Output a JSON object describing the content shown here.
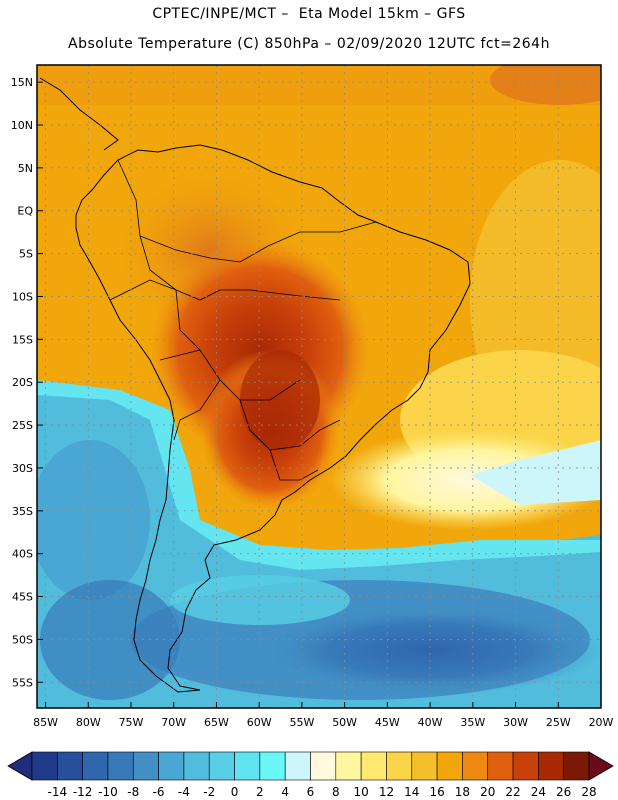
{
  "header": {
    "line1": "CPTEC/INPE/MCT –  Eta Model 15km – GFS",
    "line2": "Absolute Temperature (C) 850hPa – 02/09/2020 12UTC fct=264h"
  },
  "map": {
    "lat_labels": [
      "15N",
      "10N",
      "5N",
      "EQ",
      "5S",
      "10S",
      "15S",
      "20S",
      "25S",
      "30S",
      "35S",
      "40S",
      "45S",
      "50S",
      "55S"
    ],
    "lat_values": [
      15,
      10,
      5,
      0,
      -5,
      -10,
      -15,
      -20,
      -25,
      -30,
      -35,
      -40,
      -45,
      -50,
      -55
    ],
    "lon_labels": [
      "85W",
      "80W",
      "75W",
      "70W",
      "65W",
      "60W",
      "55W",
      "50W",
      "45W",
      "40W",
      "35W",
      "30W",
      "25W",
      "20W"
    ],
    "lon_values": [
      -85,
      -80,
      -75,
      -70,
      -65,
      -60,
      -55,
      -50,
      -45,
      -40,
      -35,
      -30,
      -25,
      -20
    ],
    "extent": {
      "lon_min": -86,
      "lon_max": -20,
      "lat_min": -58,
      "lat_max": 17
    }
  },
  "colorbar": {
    "labels": [
      "-14",
      "-12",
      "-10",
      "-8",
      "-6",
      "-4",
      "-2",
      "0",
      "2",
      "4",
      "6",
      "8",
      "10",
      "12",
      "14",
      "16",
      "18",
      "20",
      "22",
      "24",
      "26",
      "28"
    ],
    "colors": [
      "#1f3a8a",
      "#27509c",
      "#2f66ad",
      "#387ab9",
      "#4290c6",
      "#4aa6d2",
      "#52bcdd",
      "#58cfe6",
      "#5fe3ee",
      "#6cf7f7",
      "#cdf6fb",
      "#fff9e0",
      "#fff6a0",
      "#ffe870",
      "#fbd44a",
      "#f4be2c",
      "#f1a70b",
      "#ee8a12",
      "#e0600f",
      "#c9410a",
      "#a82a05",
      "#7a1a04"
    ],
    "under_color": "#1f2d7a",
    "over_color": "#6a0a1a"
  }
}
